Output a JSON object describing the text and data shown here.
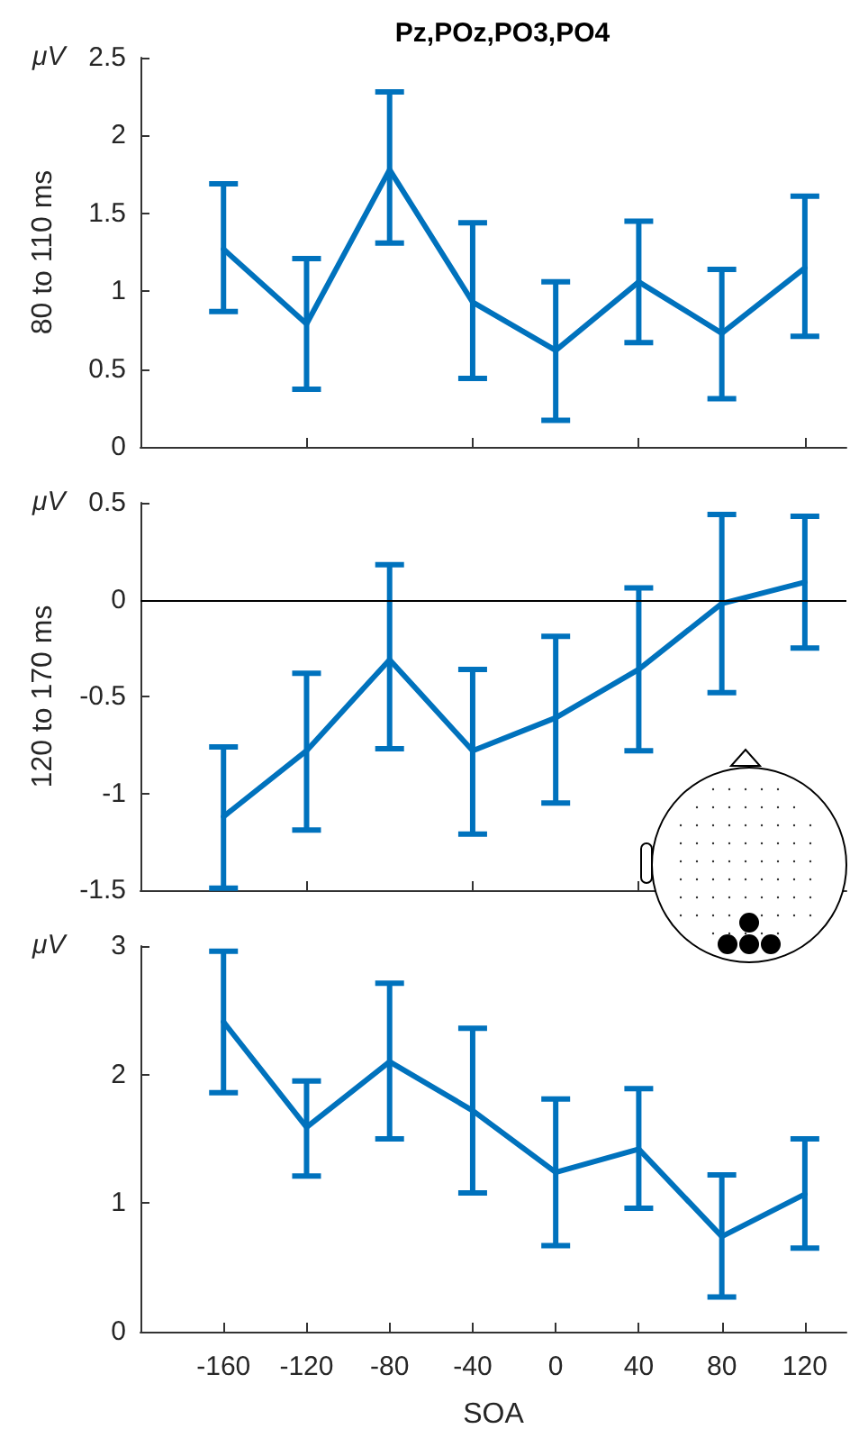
{
  "chart_data": [
    {
      "type": "line",
      "title": "Pz,POz,PO3,PO4",
      "ylabel": "80 to 110 ms",
      "annotations": [
        "μV"
      ],
      "x": [
        -160,
        -120,
        -80,
        -40,
        0,
        40,
        80,
        120
      ],
      "xlim": [
        -200,
        140
      ],
      "xticks": [
        {
          "value": -120,
          "label": null
        },
        {
          "value": -40,
          "label": null
        },
        {
          "value": 40,
          "label": null
        },
        {
          "value": 120,
          "label": null
        }
      ],
      "ylim": [
        0,
        2.5
      ],
      "yticks": [
        0,
        0.5,
        1,
        1.5,
        2,
        2.5
      ],
      "tick_labels": "y",
      "marker": "none",
      "series": [
        {
          "color": "#0072bd",
          "values": [
            1.27,
            0.79,
            1.78,
            0.93,
            0.62,
            1.06,
            0.73,
            1.15
          ],
          "errors": [
            [
              0.87,
              1.69
            ],
            [
              0.37,
              1.21
            ],
            [
              1.31,
              2.28
            ],
            [
              0.44,
              1.44
            ],
            [
              0.17,
              1.06
            ],
            [
              0.67,
              1.45
            ],
            [
              0.31,
              1.14
            ],
            [
              0.71,
              1.61
            ]
          ]
        }
      ]
    },
    {
      "type": "line",
      "ylabel": "120 to 170 ms",
      "annotations": [
        "μV"
      ],
      "x": [
        -160,
        -120,
        -80,
        -40,
        0,
        40,
        80,
        120
      ],
      "xlim": [
        -200,
        140
      ],
      "xticks": [
        {
          "value": -120,
          "label": null
        },
        {
          "value": -40,
          "label": null
        },
        {
          "value": 40,
          "label": null
        },
        {
          "value": 120,
          "label": null
        }
      ],
      "ylim": [
        -1.5,
        0.5
      ],
      "yticks": [
        -1.5,
        -1,
        -0.5,
        0,
        0.5
      ],
      "tick_labels": "y",
      "marker": "none",
      "ref_lines": [
        {
          "axis": "y",
          "value": 0,
          "color": "#000000"
        }
      ],
      "series": [
        {
          "color": "#0072bd",
          "values": [
            -1.12,
            -0.78,
            -0.31,
            -0.78,
            -0.61,
            -0.36,
            -0.02,
            0.09
          ],
          "errors": [
            [
              -1.49,
              -0.76
            ],
            [
              -1.19,
              -0.38
            ],
            [
              -0.77,
              0.18
            ],
            [
              -1.21,
              -0.36
            ],
            [
              -1.05,
              -0.19
            ],
            [
              -0.78,
              0.06
            ],
            [
              -0.48,
              0.44
            ],
            [
              -0.25,
              0.43
            ]
          ]
        }
      ]
    },
    {
      "type": "line",
      "xlabel": "SOA",
      "annotations": [
        "μV"
      ],
      "x": [
        -160,
        -120,
        -80,
        -40,
        0,
        40,
        80,
        120
      ],
      "xlim": [
        -200,
        140
      ],
      "xticks": [
        -160,
        -120,
        -80,
        -40,
        0,
        40,
        80,
        120
      ],
      "ylim": [
        0,
        3
      ],
      "yticks": [
        0,
        1,
        2,
        3
      ],
      "marker": "none",
      "series": [
        {
          "color": "#0072bd",
          "values": [
            2.41,
            1.59,
            2.1,
            1.72,
            1.24,
            1.42,
            0.74,
            1.07
          ],
          "errors": [
            [
              1.86,
              2.96
            ],
            [
              1.21,
              1.95
            ],
            [
              1.5,
              2.71
            ],
            [
              1.08,
              2.36
            ],
            [
              0.67,
              1.81
            ],
            [
              0.96,
              1.89
            ],
            [
              0.27,
              1.22
            ],
            [
              0.65,
              1.5
            ]
          ]
        }
      ]
    }
  ]
}
